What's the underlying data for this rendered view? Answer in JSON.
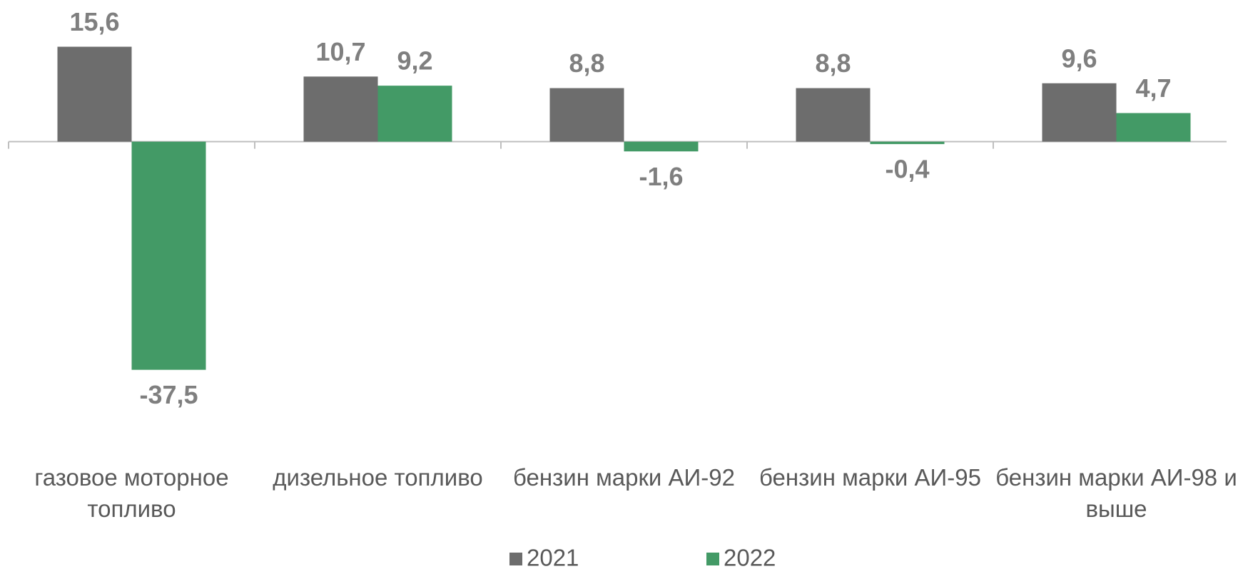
{
  "chart_data": {
    "type": "bar",
    "categories": [
      "газовое моторное топливо",
      "дизельное топливо",
      "бензин марки АИ-92",
      "бензин марки АИ-95",
      "бензин марки АИ-98 и выше"
    ],
    "series": [
      {
        "name": "2021",
        "color": "#6d6d6d",
        "values": [
          15.6,
          10.7,
          8.8,
          8.8,
          9.6
        ],
        "value_labels": [
          "15,6",
          "10,7",
          "8,8",
          "8,8",
          "9,6"
        ]
      },
      {
        "name": "2022",
        "color": "#439a66",
        "values": [
          -37.5,
          9.2,
          -1.6,
          -0.4,
          4.7
        ],
        "value_labels": [
          "-37,5",
          "9,2",
          "-1,6",
          "-0,4",
          "4,7"
        ]
      }
    ],
    "ylim": [
      -40,
      20
    ]
  }
}
